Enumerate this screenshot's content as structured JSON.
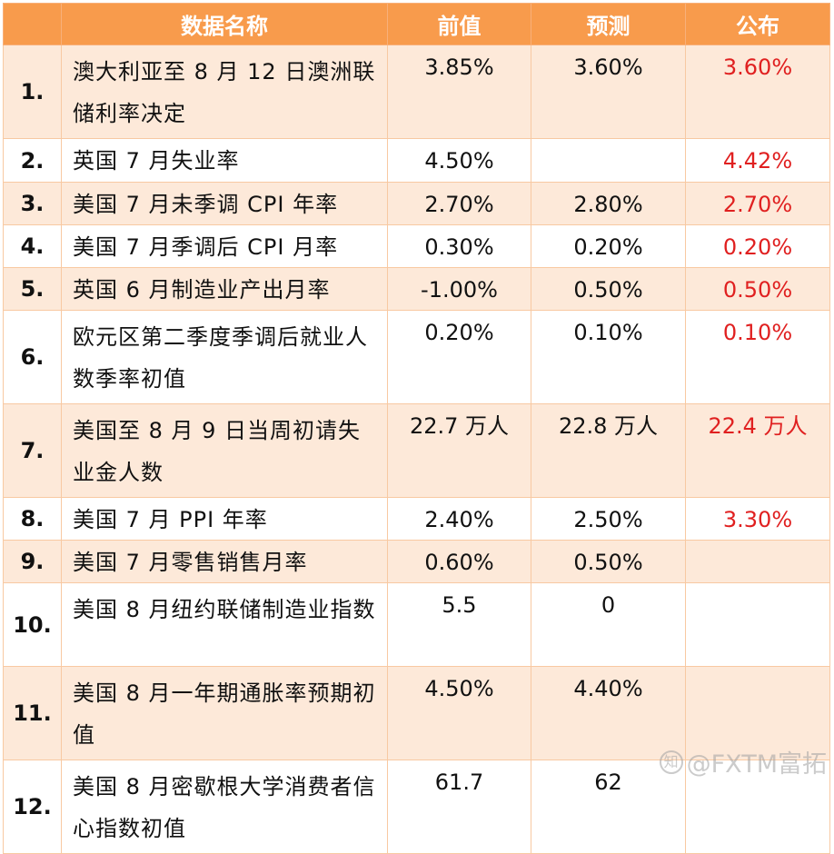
{
  "header": {
    "name": "数据名称",
    "prev": "前值",
    "forecast": "预测",
    "published": "公布"
  },
  "rows": [
    {
      "no": "1.",
      "name": "澳大利亚至 8 月 12 日澳洲联储利率决定",
      "prev": "3.85%",
      "forecast": "3.60%",
      "published": "3.60%"
    },
    {
      "no": "2.",
      "name": "英国 7 月失业率",
      "prev": "4.50%",
      "forecast": "",
      "published": "4.42%"
    },
    {
      "no": "3.",
      "name": "美国 7 月未季调 CPI 年率",
      "prev": "2.70%",
      "forecast": "2.80%",
      "published": "2.70%"
    },
    {
      "no": "4.",
      "name": "美国 7 月季调后 CPI 月率",
      "prev": "0.30%",
      "forecast": "0.20%",
      "published": "0.20%"
    },
    {
      "no": "5.",
      "name": "英国 6 月制造业产出月率",
      "prev": "-1.00%",
      "forecast": "0.50%",
      "published": "0.50%"
    },
    {
      "no": "6.",
      "name": "欧元区第二季度季调后就业人数季率初值",
      "prev": "0.20%",
      "forecast": "0.10%",
      "published": "0.10%"
    },
    {
      "no": "7.",
      "name": "美国至 8 月 9 日当周初请失业金人数",
      "prev": "22.7 万人",
      "forecast": "22.8 万人",
      "published": "22.4 万人"
    },
    {
      "no": "8.",
      "name": "美国 7 月 PPI 年率",
      "prev": "2.40%",
      "forecast": "2.50%",
      "published": "3.30%"
    },
    {
      "no": "9.",
      "name": "美国 7 月零售销售月率",
      "prev": "0.60%",
      "forecast": "0.50%",
      "published": ""
    },
    {
      "no": "10.",
      "name": "美国 8 月纽约联储制造业指数",
      "prev": "5.5",
      "forecast": "0",
      "published": ""
    },
    {
      "no": "11.",
      "name": "美国 8 月一年期通胀率预期初值",
      "prev": "4.50%",
      "forecast": "4.40%",
      "published": ""
    },
    {
      "no": "12.",
      "name": "美国 8 月密歇根大学消费者信心指数初值",
      "prev": "61.7",
      "forecast": "62",
      "published": ""
    }
  ],
  "watermark": "@FXTM富拓",
  "colors": {
    "header_bg": "#f89b4c",
    "shade_row": "#fde9d9",
    "published_text": "#e02020"
  }
}
